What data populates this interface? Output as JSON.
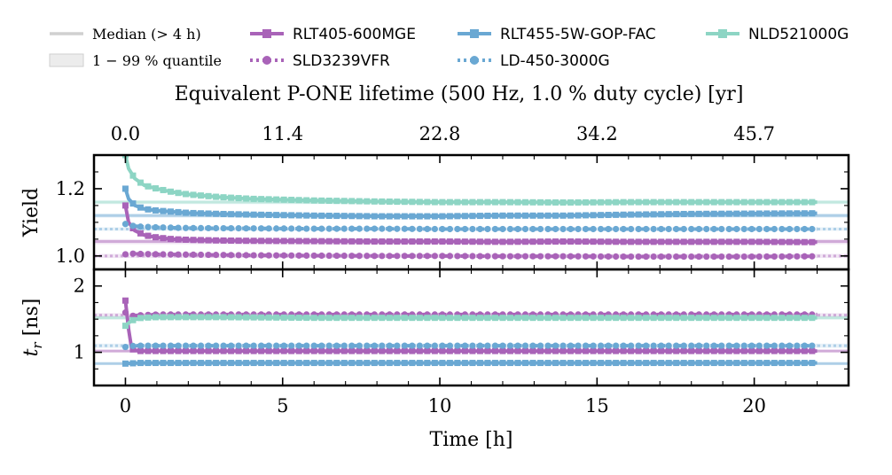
{
  "chart_data": {
    "type": "line",
    "title": "",
    "top_axis": {
      "label": "Equivalent P-ONE lifetime (500 Hz, 1.0 % duty cycle) [yr]",
      "tick_labels": [
        "0.0",
        "11.4",
        "22.8",
        "34.2",
        "45.7"
      ],
      "tick_positions_h": [
        0,
        5,
        10,
        15,
        20
      ]
    },
    "x_axis": {
      "label": "Time [h]",
      "range": [
        -1,
        23
      ],
      "ticks": [
        0,
        5,
        10,
        15,
        20
      ],
      "tick_labels": [
        "0",
        "5",
        "10",
        "15",
        "20"
      ]
    },
    "legend": {
      "placement": "top",
      "entries": [
        {
          "label": "Median (> 4 h)",
          "style": "median-line"
        },
        {
          "label": "1 − 99 % quantile",
          "style": "quantile-band"
        },
        {
          "label": "RLT405-600MGE",
          "series": "RLT405-600MGE"
        },
        {
          "label": "SLD3239VFR",
          "series": "SLD3239VFR"
        },
        {
          "label": "RLT455-5W-GOP-FAC",
          "series": "RLT455-5W-GOP-FAC"
        },
        {
          "label": "LD-450-3000G",
          "series": "LD-450-3000G"
        },
        {
          "label": "NLD521000G",
          "series": "NLD521000G"
        }
      ]
    },
    "panels": [
      {
        "name": "yield",
        "ylabel": "Yield",
        "ylim": [
          0.96,
          1.3
        ],
        "ticks": [
          1.0,
          1.2
        ],
        "tick_labels": [
          "1.0",
          "1.2"
        ],
        "series": [
          {
            "name": "RLT405-600MGE",
            "color": "#a963b8",
            "marker": "square",
            "dashed": false,
            "median": 1.043,
            "band": [
              1.035,
              1.05
            ],
            "points": [
              [
                0.0,
                1.15
              ],
              [
                0.1,
                1.1
              ],
              [
                0.3,
                1.075
              ],
              [
                0.6,
                1.062
              ],
              [
                1,
                1.055
              ],
              [
                1.5,
                1.05
              ],
              [
                2,
                1.048
              ],
              [
                3,
                1.046
              ],
              [
                4,
                1.045
              ],
              [
                6,
                1.044
              ],
              [
                8,
                1.043
              ],
              [
                10,
                1.043
              ],
              [
                12,
                1.042
              ],
              [
                14,
                1.043
              ],
              [
                16,
                1.042
              ],
              [
                18,
                1.042
              ],
              [
                20,
                1.042
              ],
              [
                22,
                1.041
              ]
            ]
          },
          {
            "name": "SLD3239VFR",
            "color": "#a963b8",
            "marker": "circle",
            "dashed": true,
            "median": 1.0,
            "band": [
              0.994,
              1.006
            ],
            "points": [
              [
                0.0,
                1.005
              ],
              [
                0.2,
                1.007
              ],
              [
                0.5,
                1.006
              ],
              [
                1,
                1.005
              ],
              [
                2,
                1.004
              ],
              [
                4,
                1.002
              ],
              [
                6,
                1.001
              ],
              [
                8,
                1.0
              ],
              [
                10,
                1.0
              ],
              [
                12,
                0.999
              ],
              [
                14,
                0.999
              ],
              [
                16,
                0.998
              ],
              [
                18,
                0.998
              ],
              [
                20,
                0.998
              ],
              [
                22,
                0.999
              ]
            ]
          },
          {
            "name": "RLT455-5W-GOP-FAC",
            "color": "#6aa8d3",
            "marker": "square",
            "dashed": false,
            "median": 1.12,
            "band": [
              1.114,
              1.126
            ],
            "points": [
              [
                0.0,
                1.2
              ],
              [
                0.1,
                1.17
              ],
              [
                0.3,
                1.15
              ],
              [
                0.6,
                1.14
              ],
              [
                1,
                1.135
              ],
              [
                2,
                1.128
              ],
              [
                3,
                1.125
              ],
              [
                4,
                1.123
              ],
              [
                6,
                1.12
              ],
              [
                8,
                1.118
              ],
              [
                10,
                1.118
              ],
              [
                12,
                1.12
              ],
              [
                14,
                1.12
              ],
              [
                16,
                1.123
              ],
              [
                18,
                1.125
              ],
              [
                20,
                1.126
              ],
              [
                22,
                1.127
              ]
            ]
          },
          {
            "name": "LD-450-3000G",
            "color": "#6aa8d3",
            "marker": "circle",
            "dashed": true,
            "median": 1.08,
            "band": [
              1.075,
              1.085
            ],
            "points": [
              [
                0.0,
                1.095
              ],
              [
                0.2,
                1.09
              ],
              [
                0.5,
                1.087
              ],
              [
                1,
                1.085
              ],
              [
                2,
                1.083
              ],
              [
                4,
                1.082
              ],
              [
                6,
                1.081
              ],
              [
                8,
                1.081
              ],
              [
                10,
                1.08
              ],
              [
                12,
                1.08
              ],
              [
                14,
                1.08
              ],
              [
                16,
                1.08
              ],
              [
                18,
                1.08
              ],
              [
                20,
                1.08
              ],
              [
                22,
                1.08
              ]
            ]
          },
          {
            "name": "NLD521000G",
            "color": "#8dd5c4",
            "marker": "square",
            "dashed": false,
            "median": 1.16,
            "band": [
              1.154,
              1.166
            ],
            "points": [
              [
                0.0,
                1.3
              ],
              [
                0.1,
                1.26
              ],
              [
                0.3,
                1.23
              ],
              [
                0.6,
                1.21
              ],
              [
                1,
                1.2
              ],
              [
                1.5,
                1.19
              ],
              [
                2,
                1.183
              ],
              [
                3,
                1.175
              ],
              [
                4,
                1.17
              ],
              [
                6,
                1.165
              ],
              [
                8,
                1.162
              ],
              [
                10,
                1.16
              ],
              [
                12,
                1.16
              ],
              [
                14,
                1.159
              ],
              [
                16,
                1.16
              ],
              [
                18,
                1.16
              ],
              [
                20,
                1.16
              ],
              [
                22,
                1.16
              ]
            ]
          }
        ]
      },
      {
        "name": "risetime",
        "ylabel": "t_r [ns]",
        "ylabel_main": "t",
        "ylabel_sub": "r",
        "ylabel_unit": "[ns]",
        "ylim": [
          0.5,
          2.25
        ],
        "ticks": [
          1,
          2
        ],
        "tick_labels": [
          "1",
          "2"
        ],
        "series": [
          {
            "name": "RLT405-600MGE",
            "color": "#a963b8",
            "marker": "square",
            "dashed": false,
            "median": 1.02,
            "band": [
              1.0,
              1.04
            ],
            "points": [
              [
                0.0,
                1.78
              ],
              [
                0.1,
                1.35
              ],
              [
                0.2,
                1.05
              ],
              [
                0.4,
                1.02
              ],
              [
                1,
                1.02
              ],
              [
                3,
                1.02
              ],
              [
                6,
                1.02
              ],
              [
                10,
                1.02
              ],
              [
                14,
                1.02
              ],
              [
                18,
                1.02
              ],
              [
                22,
                1.02
              ]
            ]
          },
          {
            "name": "SLD3239VFR",
            "color": "#a963b8",
            "marker": "circle",
            "dashed": true,
            "median": 1.56,
            "band": [
              1.53,
              1.59
            ],
            "points": [
              [
                0.0,
                1.6
              ],
              [
                0.2,
                1.55
              ],
              [
                0.5,
                1.56
              ],
              [
                1,
                1.57
              ],
              [
                3,
                1.57
              ],
              [
                6,
                1.57
              ],
              [
                10,
                1.57
              ],
              [
                14,
                1.57
              ],
              [
                18,
                1.57
              ],
              [
                22,
                1.57
              ]
            ]
          },
          {
            "name": "RLT455-5W-GOP-FAC",
            "color": "#6aa8d3",
            "marker": "square",
            "dashed": false,
            "median": 0.83,
            "band": [
              0.81,
              0.85
            ],
            "points": [
              [
                0.0,
                0.83
              ],
              [
                0.5,
                0.84
              ],
              [
                1,
                0.84
              ],
              [
                3,
                0.84
              ],
              [
                6,
                0.84
              ],
              [
                10,
                0.84
              ],
              [
                14,
                0.84
              ],
              [
                18,
                0.84
              ],
              [
                22,
                0.84
              ]
            ]
          },
          {
            "name": "LD-450-3000G",
            "color": "#6aa8d3",
            "marker": "circle",
            "dashed": true,
            "median": 1.1,
            "band": [
              1.07,
              1.13
            ],
            "points": [
              [
                0.0,
                1.08
              ],
              [
                0.3,
                1.1
              ],
              [
                1,
                1.1
              ],
              [
                3,
                1.1
              ],
              [
                6,
                1.1
              ],
              [
                10,
                1.1
              ],
              [
                14,
                1.1
              ],
              [
                18,
                1.1
              ],
              [
                22,
                1.1
              ]
            ]
          },
          {
            "name": "NLD521000G",
            "color": "#8dd5c4",
            "marker": "square",
            "dashed": false,
            "median": 1.52,
            "band": [
              1.49,
              1.55
            ],
            "points": [
              [
                0.0,
                1.4
              ],
              [
                0.2,
                1.48
              ],
              [
                0.5,
                1.52
              ],
              [
                1,
                1.53
              ],
              [
                3,
                1.53
              ],
              [
                6,
                1.52
              ],
              [
                10,
                1.52
              ],
              [
                14,
                1.52
              ],
              [
                18,
                1.52
              ],
              [
                22,
                1.52
              ]
            ]
          }
        ]
      }
    ]
  }
}
